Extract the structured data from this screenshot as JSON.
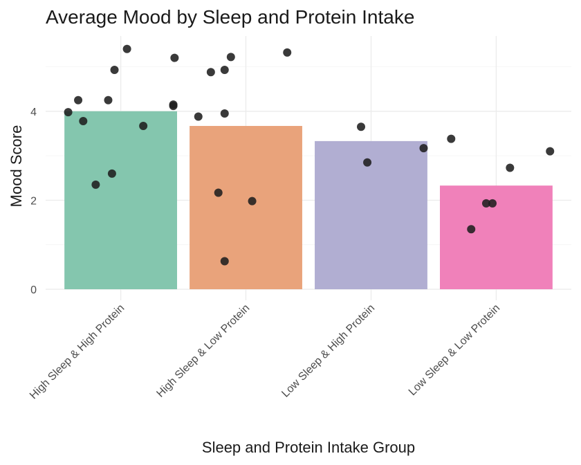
{
  "chart_data": {
    "type": "bar",
    "title": "Average Mood by Sleep and Protein Intake",
    "xlabel": "Sleep and Protein Intake Group",
    "ylabel": "Mood Score",
    "categories": [
      "High Sleep & High Protein",
      "High Sleep & Low Protein",
      "Low Sleep & High Protein",
      "Low Sleep & Low Protein"
    ],
    "values": [
      4.0,
      3.67,
      3.33,
      2.33
    ],
    "bar_colors": [
      "#80c4ab",
      "#e8a077",
      "#aeabd1",
      "#ef7db8"
    ],
    "point_color": "#1f1f1f",
    "ylim": [
      0,
      5.6
    ],
    "y_ticks": [
      0,
      2,
      4
    ],
    "grid": true,
    "legend": "none",
    "points": [
      [
        {
          "offset": -0.05,
          "y": 4.93
        },
        {
          "offset": 0.05,
          "y": 5.4
        },
        {
          "offset": 0.43,
          "y": 5.2
        },
        {
          "offset": -0.34,
          "y": 4.25
        },
        {
          "offset": -0.1,
          "y": 4.25
        },
        {
          "offset": 0.42,
          "y": 4.15
        },
        {
          "offset": 0.42,
          "y": 4.12
        },
        {
          "offset": -0.42,
          "y": 3.98
        },
        {
          "offset": -0.3,
          "y": 3.78
        },
        {
          "offset": 0.18,
          "y": 3.67
        },
        {
          "offset": -0.07,
          "y": 2.6
        },
        {
          "offset": -0.2,
          "y": 2.35
        }
      ],
      [
        {
          "offset": -0.12,
          "y": 5.22
        },
        {
          "offset": 0.33,
          "y": 5.32
        },
        {
          "offset": -0.28,
          "y": 4.88
        },
        {
          "offset": -0.17,
          "y": 4.93
        },
        {
          "offset": -0.17,
          "y": 3.95
        },
        {
          "offset": -0.38,
          "y": 3.88
        },
        {
          "offset": -0.22,
          "y": 2.17
        },
        {
          "offset": 0.05,
          "y": 1.98
        },
        {
          "offset": -0.17,
          "y": 0.63
        }
      ],
      [
        {
          "offset": -0.08,
          "y": 3.65
        },
        {
          "offset": 0.42,
          "y": 3.17
        },
        {
          "offset": -0.03,
          "y": 2.85
        }
      ],
      [
        {
          "offset": -0.36,
          "y": 3.38
        },
        {
          "offset": 0.43,
          "y": 3.1
        },
        {
          "offset": 0.11,
          "y": 2.73
        },
        {
          "offset": -0.08,
          "y": 1.93
        },
        {
          "offset": -0.03,
          "y": 1.93
        },
        {
          "offset": -0.2,
          "y": 1.35
        }
      ]
    ]
  }
}
